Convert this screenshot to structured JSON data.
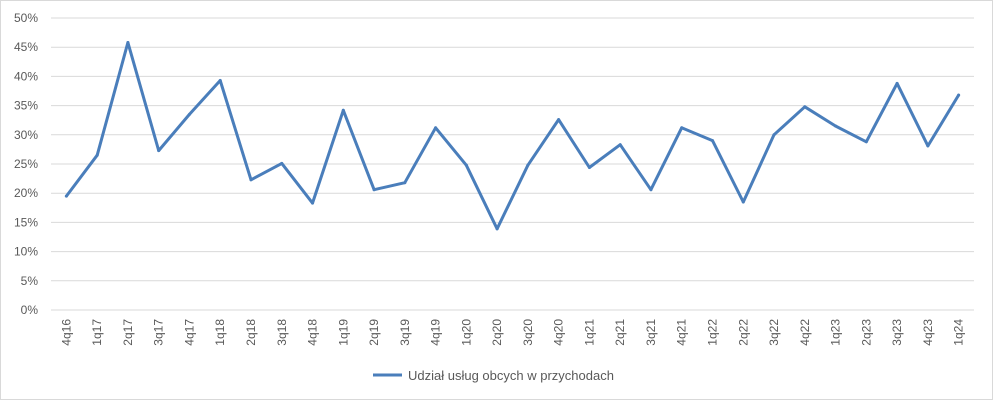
{
  "chart_data": {
    "type": "line",
    "title": "",
    "xlabel": "",
    "ylabel": "",
    "ylim": [
      0,
      50
    ],
    "ytick_labels": [
      "0%",
      "5%",
      "10%",
      "15%",
      "20%",
      "25%",
      "30%",
      "35%",
      "40%",
      "45%",
      "50%"
    ],
    "grid": "horizontal",
    "legend_position": "bottom",
    "categories": [
      "4q16",
      "1q17",
      "2q17",
      "3q17",
      "4q17",
      "1q18",
      "2q18",
      "3q18",
      "4q18",
      "1q19",
      "2q19",
      "3q19",
      "4q19",
      "1q20",
      "2q20",
      "3q20",
      "4q20",
      "1q21",
      "2q21",
      "3q21",
      "4q21",
      "1q22",
      "2q22",
      "3q22",
      "4q22",
      "1q23",
      "2q23",
      "3q23",
      "4q23",
      "1q24"
    ],
    "series": [
      {
        "name": "Udział usług obcych w przychodach",
        "color": "#4a7ebb",
        "values": [
          19.5,
          26.5,
          45.8,
          27.3,
          33.5,
          39.3,
          22.3,
          25.1,
          18.3,
          34.2,
          20.6,
          21.8,
          31.2,
          24.8,
          13.9,
          24.8,
          32.6,
          24.4,
          28.3,
          20.6,
          31.2,
          29.0,
          18.5,
          30.0,
          34.8,
          31.5,
          28.8,
          38.8,
          28.1,
          36.8
        ]
      }
    ]
  },
  "colors": {
    "grid": "#d9d9d9",
    "text": "#595959",
    "border": "#d9d9d9"
  }
}
